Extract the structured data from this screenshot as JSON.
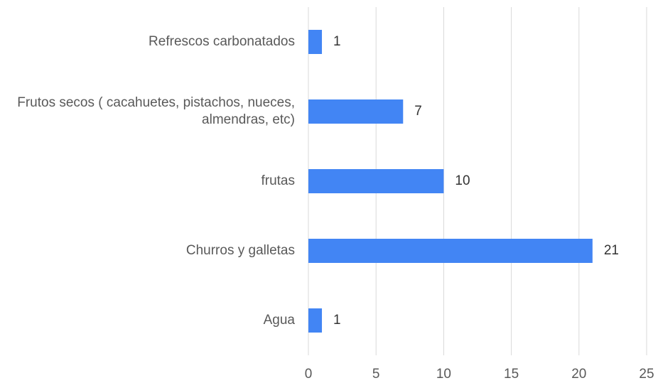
{
  "chart_data": {
    "type": "hbar",
    "categories": [
      "Refrescos carbonatados",
      "Frutos secos ( cacahuetes, pistachos, nueces, almendras, etc)",
      "frutas",
      "Churros y galletas",
      "Agua"
    ],
    "values": [
      1,
      7,
      10,
      21,
      1
    ],
    "color": "#4285f4",
    "xlim": [
      0,
      25
    ],
    "xticks": [
      0,
      5,
      10,
      15,
      20,
      25
    ],
    "grid": true
  }
}
